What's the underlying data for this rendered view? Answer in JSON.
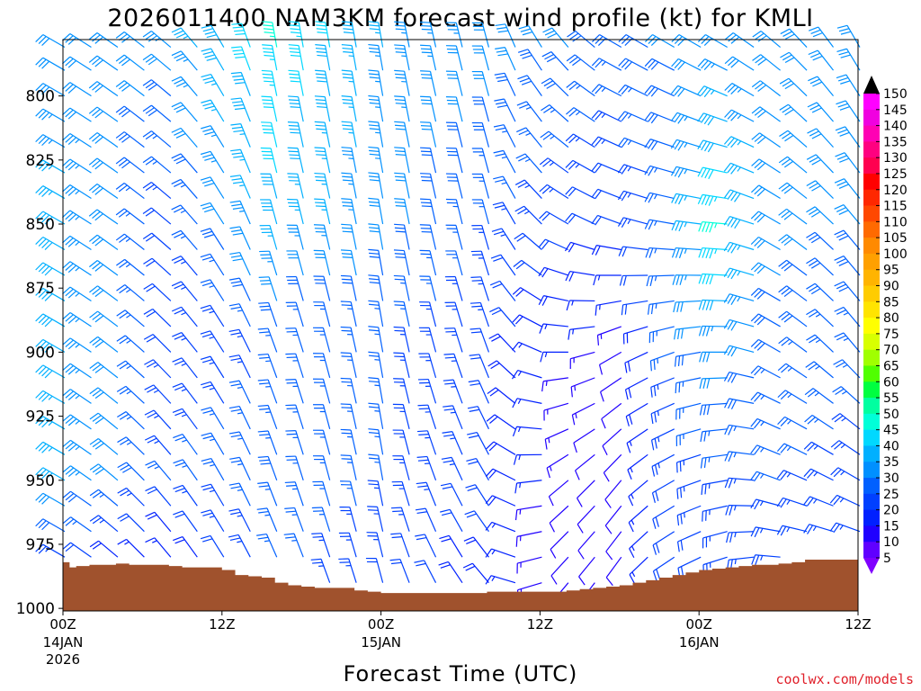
{
  "chart_data": {
    "type": "wind-barb time-height profile",
    "title": "2026011400 NAM3KM forecast wind profile (kt) for KMLI",
    "xlabel": "Forecast Time (UTC)",
    "ylabel": "",
    "credit": "coolwx.com/models",
    "x_hours_range": [
      0,
      60
    ],
    "y_pressure_range_hpa": [
      778,
      1001
    ],
    "y_ticks": [
      {
        "p": 800,
        "label": "800"
      },
      {
        "p": 825,
        "label": "825"
      },
      {
        "p": 850,
        "label": "850"
      },
      {
        "p": 875,
        "label": "875"
      },
      {
        "p": 900,
        "label": "900"
      },
      {
        "p": 925,
        "label": "925"
      },
      {
        "p": 950,
        "label": "950"
      },
      {
        "p": 975,
        "label": "975"
      },
      {
        "p": 1000,
        "label": "1000"
      }
    ],
    "x_ticks": [
      {
        "h": 0,
        "label": "00Z",
        "date": "14JAN",
        "year": "2026"
      },
      {
        "h": 12,
        "label": "12Z",
        "date": "",
        "year": ""
      },
      {
        "h": 24,
        "label": "00Z",
        "date": "15JAN",
        "year": ""
      },
      {
        "h": 36,
        "label": "12Z",
        "date": "",
        "year": ""
      },
      {
        "h": 48,
        "label": "00Z",
        "date": "16JAN",
        "year": ""
      },
      {
        "h": 60,
        "label": "12Z",
        "date": "",
        "year": ""
      }
    ],
    "barb_time_step_h": 2,
    "barb_levels_hpa": [
      781,
      790,
      800,
      810,
      820,
      830,
      840,
      850,
      860,
      870,
      880,
      890,
      900,
      910,
      920,
      930,
      940,
      950,
      960,
      970,
      980,
      990
    ],
    "surface_pressure_hpa": {
      "hours": [
        0,
        0.5,
        1,
        2,
        3,
        4,
        5,
        6,
        7,
        8,
        9,
        10,
        11,
        12,
        13,
        14,
        15,
        16,
        17,
        18,
        19,
        20,
        21,
        22,
        23,
        24,
        25,
        26,
        27,
        28,
        29,
        30,
        31,
        32,
        33,
        34,
        35,
        36,
        37,
        38,
        39,
        40,
        41,
        42,
        43,
        44,
        45,
        46,
        47,
        48,
        49,
        50,
        51,
        52,
        53,
        54,
        55,
        56,
        57,
        58,
        59,
        60
      ],
      "values": [
        982,
        984,
        983.5,
        983,
        983,
        982.5,
        983,
        983,
        983,
        983.5,
        984,
        984,
        984,
        985,
        987,
        987.5,
        988,
        990,
        991,
        991.5,
        992,
        992,
        992,
        993,
        993.5,
        994,
        994,
        994,
        994,
        994,
        994,
        994,
        994,
        993.5,
        993.5,
        993.5,
        993.5,
        993.5,
        993.5,
        993,
        992.5,
        992,
        991.5,
        991,
        990,
        989,
        988,
        987,
        986,
        985,
        984.5,
        984,
        983.5,
        983,
        983,
        982.5,
        982,
        981,
        981,
        981,
        981,
        981
      ]
    },
    "wind_speed_kt": {
      "anchor_hours": [
        0,
        8,
        16,
        24,
        32,
        38,
        42,
        46,
        50,
        54,
        60
      ],
      "anchor_levels_hpa": [
        781,
        850,
        900,
        950,
        990
      ],
      "speed_grid_rows_by_level": [
        [
          30,
          33,
          45,
          35,
          32,
          30,
          28,
          30,
          32,
          30,
          30
        ],
        [
          38,
          22,
          38,
          32,
          25,
          22,
          20,
          26,
          46,
          32,
          30
        ],
        [
          38,
          22,
          25,
          25,
          22,
          15,
          12,
          25,
          32,
          28,
          26
        ],
        [
          36,
          25,
          28,
          25,
          22,
          12,
          10,
          22,
          24,
          25,
          24
        ],
        [
          20,
          12,
          25,
          22,
          18,
          10,
          10,
          20,
          22,
          22,
          22
        ]
      ],
      "direction_from_deg_grid_rows_by_level": [
        [
          300,
          310,
          350,
          350,
          345,
          320,
          300,
          300,
          300,
          310,
          330
        ],
        [
          300,
          310,
          345,
          350,
          345,
          300,
          290,
          280,
          275,
          300,
          320
        ],
        [
          300,
          315,
          340,
          350,
          340,
          270,
          240,
          250,
          270,
          300,
          320
        ],
        [
          300,
          320,
          340,
          350,
          330,
          230,
          220,
          240,
          260,
          290,
          300
        ],
        [
          300,
          320,
          335,
          345,
          320,
          220,
          215,
          235,
          250,
          270,
          280
        ]
      ]
    },
    "colorbar": {
      "labels": [
        "150",
        "145",
        "140",
        "135",
        "130",
        "125",
        "120",
        "115",
        "110",
        "105",
        "100",
        "95",
        "90",
        "85",
        "80",
        "75",
        "70",
        "65",
        "60",
        "55",
        "50",
        "45",
        "40",
        "35",
        "30",
        "25",
        "20",
        "15",
        "10",
        "5"
      ],
      "colors": [
        "#ff00ff",
        "#f000e0",
        "#ff00b4",
        "#ff0080",
        "#ff0050",
        "#ff0000",
        "#ff2800",
        "#ff4800",
        "#ff6a00",
        "#ff8a00",
        "#ffa000",
        "#ffb400",
        "#ffcc00",
        "#ffe400",
        "#ffff00",
        "#d8ff00",
        "#a0ff00",
        "#50ff00",
        "#00ff40",
        "#00ffa0",
        "#00ffd8",
        "#00d8ff",
        "#00b0ff",
        "#0090ff",
        "#0060ff",
        "#0040ff",
        "#0020ff",
        "#2000ff",
        "#6000ff"
      ],
      "top_arrow": "#000000",
      "bottom_arrow": "#8000ff"
    },
    "ground_color": "#a0522d"
  }
}
